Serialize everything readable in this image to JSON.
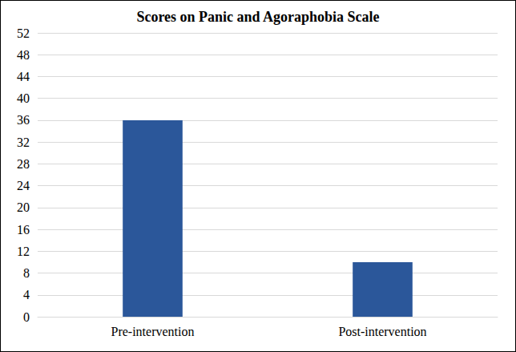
{
  "chart_data": {
    "type": "bar",
    "title": "Scores on Panic and Agoraphobia Scale",
    "categories": [
      "Pre-intervention",
      "Post-intervention"
    ],
    "values": [
      36,
      10
    ],
    "color": "#2B579A",
    "ylim": [
      0,
      52
    ],
    "yticks": [
      0,
      4,
      8,
      12,
      16,
      20,
      24,
      28,
      32,
      36,
      40,
      44,
      48,
      52
    ],
    "grid": true
  }
}
